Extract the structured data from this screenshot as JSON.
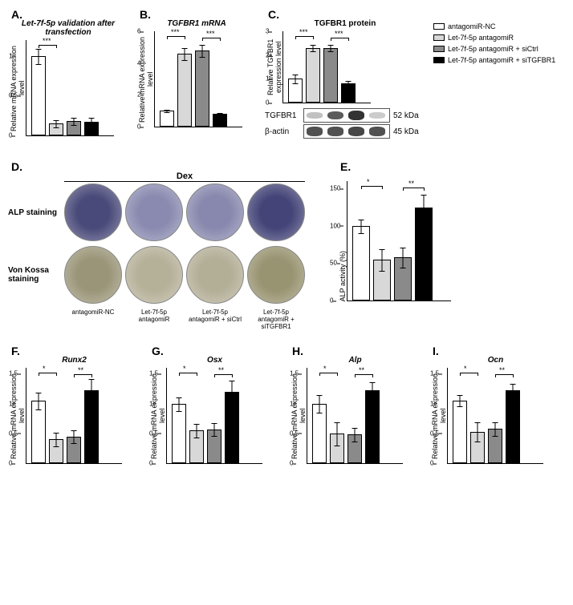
{
  "panels": {
    "A": {
      "label": "A.",
      "title": "Let-7f-5p validation after transfection",
      "ylabel": "Relative mRNA expression level",
      "ylim": [
        0,
        1.2
      ],
      "yticks": [
        0,
        0.5,
        1.0
      ],
      "values": [
        1.0,
        0.15,
        0.18,
        0.17
      ],
      "errors": [
        0.1,
        0.05,
        0.05,
        0.06
      ],
      "sigs": [
        {
          "from": 0,
          "to": 1,
          "label": "***"
        }
      ]
    },
    "B": {
      "label": "B.",
      "title": "TGFBR1 mRNA",
      "ylabel": "Relative mRNA expression level",
      "ylim": [
        0,
        6
      ],
      "yticks": [
        0,
        2,
        4,
        6
      ],
      "values": [
        1.0,
        4.6,
        4.8,
        0.8
      ],
      "errors": [
        0.1,
        0.4,
        0.4,
        0.1
      ],
      "sigs": [
        {
          "from": 0,
          "to": 1,
          "label": "***"
        },
        {
          "from": 2,
          "to": 3,
          "label": "***"
        }
      ]
    },
    "C": {
      "label": "C.",
      "title": "TGFBR1 protein",
      "ylabel": "Relative TGFBR1 expression level",
      "ylim": [
        0,
        3
      ],
      "yticks": [
        0,
        1,
        2,
        3
      ],
      "values": [
        1.0,
        2.3,
        2.3,
        0.8
      ],
      "errors": [
        0.2,
        0.15,
        0.15,
        0.15
      ],
      "sigs": [
        {
          "from": 0,
          "to": 1,
          "label": "***"
        },
        {
          "from": 2,
          "to": 3,
          "label": "***"
        }
      ],
      "blots": {
        "tgfbr1_label": "TGFBR1",
        "tgfbr1_mw": "52 kDa",
        "actin_label": "β-actin",
        "actin_mw": "45 kDa",
        "tgfbr1_int": [
          0.3,
          0.8,
          1.0,
          0.25
        ],
        "actin_int": [
          0.85,
          0.85,
          0.9,
          0.85
        ]
      }
    },
    "D": {
      "label": "D.",
      "dex": "Dex",
      "alp_label": "ALP staining",
      "vk_label": "Von Kossa staining",
      "alp_colors": [
        "#4a4a7a",
        "#8a8ab0",
        "#8888ae",
        "#444478"
      ],
      "vk_colors": [
        "#9a9578",
        "#b5b098",
        "#b3ae96",
        "#989370"
      ],
      "cols": [
        "antagomiR-NC",
        "Let-7f-5p antagomiR",
        "Let-7f-5p antagomiR + siCtrl",
        "Let-7f-5p antagomiR + siTGFBR1"
      ]
    },
    "E": {
      "label": "E.",
      "ylabel": "ALP activity (%)",
      "ylim": [
        0,
        160
      ],
      "yticks": [
        0,
        50,
        100,
        150
      ],
      "values": [
        100,
        55,
        58,
        125
      ],
      "errors": [
        10,
        15,
        14,
        18
      ],
      "sigs": [
        {
          "from": 0,
          "to": 1,
          "label": "*"
        },
        {
          "from": 2,
          "to": 3,
          "label": "**"
        }
      ]
    },
    "F": {
      "label": "F.",
      "title": "Runx2",
      "ylabel": "Relative mRNA expression level",
      "ylim": [
        0,
        1.6
      ],
      "yticks": [
        0,
        0.5,
        1.0,
        1.5
      ],
      "values": [
        1.05,
        0.4,
        0.45,
        1.22
      ],
      "errors": [
        0.15,
        0.12,
        0.11,
        0.2
      ],
      "sigs": [
        {
          "from": 0,
          "to": 1,
          "label": "*"
        },
        {
          "from": 2,
          "to": 3,
          "label": "**"
        }
      ]
    },
    "G": {
      "label": "G.",
      "title": "Osx",
      "ylabel": "Relative mRNA expression level",
      "ylim": [
        0,
        1.6
      ],
      "yticks": [
        0,
        0.5,
        1.0,
        1.5
      ],
      "values": [
        1.0,
        0.55,
        0.57,
        1.2
      ],
      "errors": [
        0.12,
        0.12,
        0.11,
        0.2
      ],
      "sigs": [
        {
          "from": 0,
          "to": 1,
          "label": "*"
        },
        {
          "from": 2,
          "to": 3,
          "label": "**"
        }
      ]
    },
    "H": {
      "label": "H.",
      "title": "Alp",
      "ylabel": "Relative mRNA expression level",
      "ylim": [
        0,
        1.6
      ],
      "yticks": [
        0,
        0.5,
        1.0,
        1.5
      ],
      "values": [
        1.0,
        0.5,
        0.48,
        1.22
      ],
      "errors": [
        0.15,
        0.2,
        0.12,
        0.15
      ],
      "sigs": [
        {
          "from": 0,
          "to": 1,
          "label": "*"
        },
        {
          "from": 2,
          "to": 3,
          "label": "**"
        }
      ]
    },
    "I": {
      "label": "I.",
      "title": "Ocn",
      "ylabel": "Relative mRNA expression level",
      "ylim": [
        0,
        1.6
      ],
      "yticks": [
        0,
        0.5,
        1.0,
        1.5
      ],
      "values": [
        1.05,
        0.53,
        0.58,
        1.22
      ],
      "errors": [
        0.1,
        0.17,
        0.12,
        0.12
      ],
      "sigs": [
        {
          "from": 0,
          "to": 1,
          "label": "*"
        },
        {
          "from": 2,
          "to": 3,
          "label": "**"
        }
      ]
    }
  },
  "legend": [
    {
      "label": "antagomiR-NC",
      "color": "#ffffff"
    },
    {
      "label": "Let-7f-5p antagomiR",
      "color": "#d8d8d8"
    },
    {
      "label": "Let-7f-5p antagomiR + siCtrl",
      "color": "#8a8a8a"
    },
    {
      "label": "Let-7f-5p antagomiR + siTGFBR1",
      "color": "#000000"
    }
  ],
  "bar_colors": [
    "#ffffff",
    "#d8d8d8",
    "#8a8a8a",
    "#000000"
  ]
}
